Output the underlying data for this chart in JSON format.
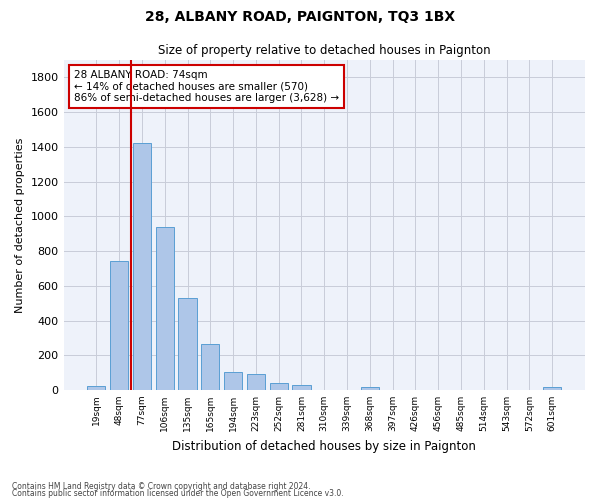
{
  "title": "28, ALBANY ROAD, PAIGNTON, TQ3 1BX",
  "subtitle": "Size of property relative to detached houses in Paignton",
  "xlabel": "Distribution of detached houses by size in Paignton",
  "ylabel": "Number of detached properties",
  "bar_color": "#aec6e8",
  "bar_edge_color": "#5a9fd4",
  "annotation_box_color": "#cc0000",
  "vline_color": "#cc0000",
  "categories": [
    "19sqm",
    "48sqm",
    "77sqm",
    "106sqm",
    "135sqm",
    "165sqm",
    "194sqm",
    "223sqm",
    "252sqm",
    "281sqm",
    "310sqm",
    "339sqm",
    "368sqm",
    "397sqm",
    "426sqm",
    "456sqm",
    "485sqm",
    "514sqm",
    "543sqm",
    "572sqm",
    "601sqm"
  ],
  "values": [
    22,
    745,
    1420,
    937,
    530,
    265,
    105,
    93,
    40,
    27,
    0,
    0,
    15,
    0,
    0,
    0,
    0,
    0,
    0,
    0,
    15
  ],
  "annotation_title": "28 ALBANY ROAD: 74sqm",
  "annotation_line1": "← 14% of detached houses are smaller (570)",
  "annotation_line2": "86% of semi-detached houses are larger (3,628) →",
  "vline_position": 1.5,
  "ylim": [
    0,
    1900
  ],
  "yticks": [
    0,
    200,
    400,
    600,
    800,
    1000,
    1200,
    1400,
    1600,
    1800
  ],
  "footer1": "Contains HM Land Registry data © Crown copyright and database right 2024.",
  "footer2": "Contains public sector information licensed under the Open Government Licence v3.0.",
  "background_color": "#eef2fa",
  "grid_color": "#c8ccd8"
}
